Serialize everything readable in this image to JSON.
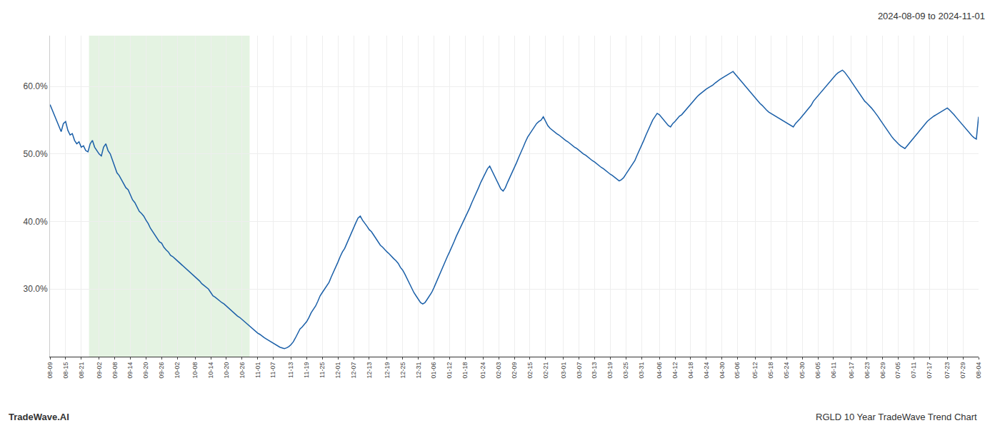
{
  "chart_data": {
    "type": "line",
    "title": "2024-08-09 to 2024-11-01",
    "annotations": [
      "TradeWave.AI",
      "RGLD 10 Year TradeWave Trend Chart"
    ],
    "color": "#1a5fa8",
    "grid": true,
    "ylim": [
      0.2,
      0.675
    ],
    "yticks": [
      {
        "value": 0.3,
        "label": "30.0%"
      },
      {
        "value": 0.4,
        "label": "40.0%"
      },
      {
        "value": 0.5,
        "label": "50.0%"
      },
      {
        "value": 0.6,
        "label": "60.0%"
      }
    ],
    "shaded_region": {
      "start": 17.472,
      "end": 89.44,
      "color": "#d6ecd2"
    },
    "categories": [
      "08-09",
      null,
      null,
      null,
      null,
      null,
      null,
      "08-15",
      null,
      null,
      null,
      null,
      null,
      null,
      "08-21",
      null,
      null,
      null,
      null,
      null,
      null,
      null,
      "09-02",
      null,
      null,
      null,
      null,
      null,
      null,
      "09-08",
      null,
      null,
      null,
      null,
      null,
      null,
      "09-14",
      null,
      null,
      null,
      null,
      null,
      null,
      "09-20",
      null,
      null,
      null,
      null,
      null,
      null,
      "09-26",
      null,
      null,
      null,
      null,
      null,
      null,
      "10-02",
      null,
      null,
      null,
      null,
      null,
      null,
      null,
      "10-08",
      null,
      null,
      null,
      null,
      null,
      null,
      "10-14",
      null,
      null,
      null,
      null,
      null,
      null,
      "10-20",
      null,
      null,
      null,
      null,
      null,
      null,
      "10-26",
      null,
      null,
      null,
      null,
      null,
      null,
      "11-01",
      null,
      null,
      null,
      null,
      null,
      null,
      "11-07",
      null,
      null,
      null,
      null,
      null,
      null,
      null,
      "11-13",
      null,
      null,
      null,
      null,
      null,
      null,
      "11-19",
      null,
      null,
      null,
      null,
      null,
      null,
      "11-25",
      null,
      null,
      null,
      null,
      null,
      null,
      "12-01",
      null,
      null,
      null,
      null,
      null,
      null,
      "12-07",
      null,
      null,
      null,
      null,
      null,
      null,
      "12-13",
      null,
      null,
      null,
      null,
      null,
      null,
      null,
      "12-19",
      null,
      null,
      null,
      null,
      null,
      null,
      "12-25",
      null,
      null,
      null,
      null,
      null,
      null,
      "12-31",
      null,
      null,
      null,
      null,
      null,
      null,
      "01-06",
      null,
      null,
      null,
      null,
      null,
      null,
      "01-12",
      null,
      null,
      null,
      null,
      null,
      null,
      "01-18",
      null,
      null,
      null,
      null,
      null,
      null,
      null,
      "01-24",
      null,
      null,
      null,
      null,
      null,
      null,
      "02-03",
      null,
      null,
      null,
      null,
      null,
      null,
      "02-09",
      null,
      null,
      null,
      null,
      null,
      null,
      "02-15",
      null,
      null,
      null,
      null,
      null,
      null,
      "02-21",
      null,
      null,
      null,
      null,
      null,
      null,
      null,
      "03-01",
      null,
      null,
      null,
      null,
      null,
      null,
      "03-07",
      null,
      null,
      null,
      null,
      null,
      null,
      "03-13",
      null,
      null,
      null,
      null,
      null,
      null,
      "03-19",
      null,
      null,
      null,
      null,
      null,
      null,
      "03-25",
      null,
      null,
      null,
      null,
      null,
      null,
      "03-31",
      null,
      null,
      null,
      null,
      null,
      null,
      null,
      "04-06",
      null,
      null,
      null,
      null,
      null,
      null,
      "04-12",
      null,
      null,
      null,
      null,
      null,
      null,
      "04-18",
      null,
      null,
      null,
      null,
      null,
      null,
      "04-24",
      null,
      null,
      null,
      null,
      null,
      null,
      "04-30",
      null,
      null,
      null,
      null,
      null,
      null,
      "05-06",
      null,
      null,
      null,
      null,
      null,
      null,
      null,
      "05-12",
      null,
      null,
      null,
      null,
      null,
      null,
      "05-18",
      null,
      null,
      null,
      null,
      null,
      null,
      "05-24",
      null,
      null,
      null,
      null,
      null,
      null,
      "05-30",
      null,
      null,
      null,
      null,
      null,
      null,
      "06-05",
      null,
      null,
      null,
      null,
      null,
      null,
      "06-11",
      null,
      null,
      null,
      null,
      null,
      null,
      null,
      "06-17",
      null,
      null,
      null,
      null,
      null,
      null,
      "06-23",
      null,
      null,
      null,
      null,
      null,
      null,
      "06-29",
      null,
      null,
      null,
      null,
      null,
      null,
      "07-05",
      null,
      null,
      null,
      null,
      null,
      null,
      "07-11",
      null,
      null,
      null,
      null,
      null,
      null,
      "07-17",
      null,
      null,
      null,
      null,
      null,
      null,
      null,
      "07-23",
      null,
      null,
      null,
      null,
      null,
      null,
      "07-29",
      null,
      null,
      null,
      null,
      null,
      null,
      "08-04"
    ],
    "values": [
      0.573,
      0.565,
      0.555,
      0.548,
      0.54,
      0.533,
      0.545,
      0.548,
      0.535,
      0.528,
      0.53,
      0.52,
      0.515,
      0.518,
      0.51,
      0.512,
      0.505,
      0.503,
      0.515,
      0.52,
      0.51,
      0.505,
      0.5,
      0.497,
      0.51,
      0.515,
      0.505,
      0.5,
      0.49,
      0.48,
      0.472,
      0.468,
      0.462,
      0.455,
      0.45,
      0.447,
      0.44,
      0.432,
      0.428,
      0.422,
      0.415,
      0.412,
      0.408,
      0.402,
      0.397,
      0.39,
      0.385,
      0.38,
      0.375,
      0.37,
      0.368,
      0.362,
      0.358,
      0.355,
      0.35,
      0.348,
      0.345,
      0.342,
      0.34,
      0.337,
      0.333,
      0.33,
      0.328,
      0.325,
      0.322,
      0.318,
      0.315,
      0.312,
      0.308,
      0.305,
      0.302,
      0.3,
      0.295,
      0.29,
      0.288,
      0.285,
      0.283,
      0.28,
      0.278,
      0.275,
      0.272,
      0.268,
      0.265,
      0.262,
      0.26,
      0.258,
      0.255,
      0.253,
      0.25,
      0.247,
      0.244,
      0.241,
      0.238,
      0.235,
      0.233,
      0.23,
      0.228,
      0.226,
      0.224,
      0.222,
      0.22,
      0.218,
      0.216,
      0.214,
      0.213,
      0.212,
      0.213,
      0.215,
      0.218,
      0.222,
      0.228,
      0.235,
      0.241,
      0.244,
      0.248,
      0.252,
      0.258,
      0.265,
      0.27,
      0.275,
      0.282,
      0.29,
      0.295,
      0.3,
      0.305,
      0.31,
      0.318,
      0.325,
      0.332,
      0.34,
      0.348,
      0.355,
      0.36,
      0.368,
      0.375,
      0.382,
      0.39,
      0.398,
      0.405,
      0.408,
      0.402,
      0.398,
      0.393,
      0.388,
      0.385,
      0.38,
      0.375,
      0.37,
      0.365,
      0.362,
      0.358,
      0.355,
      0.352,
      0.348,
      0.345,
      0.342,
      0.338,
      0.332,
      0.328,
      0.322,
      0.315,
      0.308,
      0.302,
      0.295,
      0.29,
      0.285,
      0.28,
      0.278,
      0.28,
      0.285,
      0.29,
      0.295,
      0.302,
      0.31,
      0.318,
      0.325,
      0.332,
      0.34,
      0.348,
      0.355,
      0.362,
      0.37,
      0.378,
      0.385,
      0.392,
      0.398,
      0.405,
      0.412,
      0.42,
      0.428,
      0.435,
      0.442,
      0.45,
      0.458,
      0.465,
      0.472,
      0.478,
      0.482,
      0.475,
      0.468,
      0.462,
      0.455,
      0.448,
      0.445,
      0.45,
      0.458,
      0.465,
      0.472,
      0.48,
      0.487,
      0.495,
      0.502,
      0.51,
      0.518,
      0.525,
      0.53,
      0.535,
      0.54,
      0.545,
      0.548,
      0.55,
      0.555,
      0.548,
      0.542,
      0.538,
      0.535,
      0.532,
      0.53,
      0.528,
      0.525,
      0.522,
      0.52,
      0.518,
      0.515,
      0.512,
      0.51,
      0.508,
      0.505,
      0.502,
      0.5,
      0.498,
      0.495,
      0.492,
      0.49,
      0.488,
      0.485,
      0.483,
      0.48,
      0.478,
      0.475,
      0.472,
      0.47,
      0.468,
      0.465,
      0.463,
      0.46,
      0.462,
      0.465,
      0.47,
      0.475,
      0.48,
      0.485,
      0.49,
      0.498,
      0.505,
      0.512,
      0.52,
      0.528,
      0.535,
      0.542,
      0.55,
      0.555,
      0.56,
      0.558,
      0.554,
      0.55,
      0.545,
      0.542,
      0.54,
      0.545,
      0.548,
      0.552,
      0.556,
      0.558,
      0.562,
      0.566,
      0.57,
      0.574,
      0.578,
      0.582,
      0.585,
      0.588,
      0.591,
      0.594,
      0.596,
      0.598,
      0.6,
      0.602,
      0.605,
      0.608,
      0.61,
      0.612,
      0.614,
      0.616,
      0.618,
      0.62,
      0.622,
      0.618,
      0.614,
      0.61,
      0.606,
      0.602,
      0.598,
      0.594,
      0.59,
      0.586,
      0.582,
      0.578,
      0.575,
      0.572,
      0.568,
      0.565,
      0.562,
      0.56,
      0.558,
      0.556,
      0.554,
      0.552,
      0.55,
      0.548,
      0.546,
      0.544,
      0.542,
      0.54,
      0.545,
      0.548,
      0.552,
      0.556,
      0.56,
      0.564,
      0.568,
      0.572,
      0.578,
      0.582,
      0.586,
      0.59,
      0.594,
      0.598,
      0.602,
      0.606,
      0.61,
      0.614,
      0.617,
      0.62,
      0.622,
      0.624,
      0.621,
      0.617,
      0.612,
      0.607,
      0.602,
      0.597,
      0.592,
      0.587,
      0.582,
      0.578,
      0.575,
      0.572,
      0.568,
      0.564,
      0.56,
      0.555,
      0.55,
      0.545,
      0.54,
      0.535,
      0.53,
      0.526,
      0.522,
      0.518,
      0.515,
      0.512,
      0.51,
      0.508,
      0.512,
      0.516,
      0.52,
      0.524,
      0.528,
      0.532,
      0.536,
      0.54,
      0.545,
      0.548,
      0.551,
      0.554,
      0.556,
      0.558,
      0.56,
      0.562,
      0.564,
      0.566,
      0.568,
      0.565,
      0.562,
      0.558,
      0.554,
      0.55,
      0.546,
      0.542,
      0.538,
      0.534,
      0.53,
      0.527,
      0.524,
      0.522,
      0.555
    ]
  }
}
